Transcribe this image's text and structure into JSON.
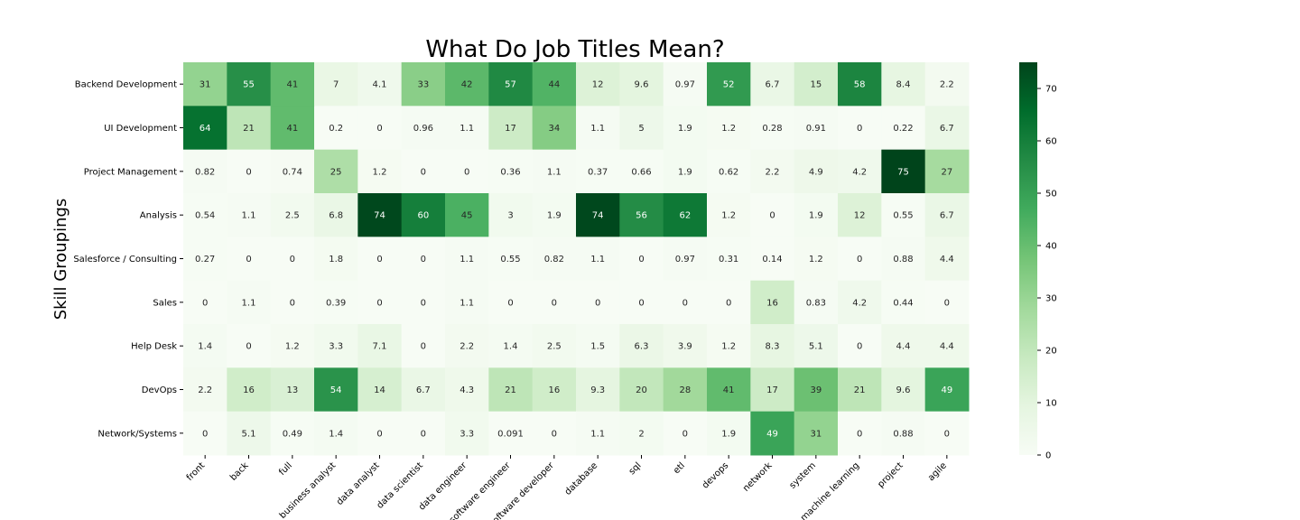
{
  "chart_data": {
    "type": "heatmap",
    "title": "What Do Job Titles Mean?",
    "xlabel": "",
    "ylabel": "Skill Groupings",
    "colormap": "Greens",
    "vmin": 0,
    "vmax": 75,
    "colorbar_ticks": [
      0,
      10,
      20,
      30,
      40,
      50,
      60,
      70
    ],
    "columns": [
      "front",
      "back",
      "full",
      "business analyst",
      "data analyst",
      "data scientist",
      "data engineer",
      "software engineer",
      "software developer",
      "database",
      "sql",
      "etl",
      "devops",
      "network",
      "system",
      "machine learning",
      "project",
      "agile"
    ],
    "rows": [
      "Backend Development",
      "UI Development",
      "Project Management",
      "Analysis",
      "Salesforce / Consulting",
      "Sales",
      "Help Desk",
      "DevOps",
      "Network/Systems"
    ],
    "values": [
      [
        31,
        55,
        41,
        7,
        4.1,
        33,
        42,
        57,
        44,
        12,
        9.6,
        0.97,
        52,
        6.7,
        15,
        58,
        8.4,
        2.2
      ],
      [
        64,
        21,
        41,
        0.2,
        0,
        0.96,
        1.1,
        17,
        34,
        1.1,
        5,
        1.9,
        1.2,
        0.28,
        0.91,
        0,
        0.22,
        6.7
      ],
      [
        0.82,
        0,
        0.74,
        25,
        1.2,
        0,
        0,
        0.36,
        1.1,
        0.37,
        0.66,
        1.9,
        0.62,
        2.2,
        4.9,
        4.2,
        75,
        27
      ],
      [
        0.54,
        1.1,
        2.5,
        6.8,
        74,
        60,
        45,
        3,
        1.9,
        74,
        56,
        62,
        1.2,
        0,
        1.9,
        12,
        0.55,
        6.7
      ],
      [
        0.27,
        0,
        0,
        1.8,
        0,
        0,
        1.1,
        0.55,
        0.82,
        1.1,
        0,
        0.97,
        0.31,
        0.14,
        1.2,
        0,
        0.88,
        4.4
      ],
      [
        0,
        1.1,
        0,
        0.39,
        0,
        0,
        1.1,
        0,
        0,
        0,
        0,
        0,
        0,
        16,
        0.83,
        4.2,
        0.44,
        0
      ],
      [
        1.4,
        0,
        1.2,
        3.3,
        7.1,
        0,
        2.2,
        1.4,
        2.5,
        1.5,
        6.3,
        3.9,
        1.2,
        8.3,
        5.1,
        0,
        4.4,
        4.4
      ],
      [
        2.2,
        16,
        13,
        54,
        14,
        6.7,
        4.3,
        21,
        16,
        9.3,
        20,
        28,
        41,
        17,
        39,
        21,
        9.6,
        49
      ],
      [
        0,
        5.1,
        0.49,
        1.4,
        0,
        0,
        3.3,
        0.091,
        0,
        1.1,
        2,
        0,
        1.9,
        49,
        31,
        0,
        0.88,
        0
      ]
    ]
  }
}
